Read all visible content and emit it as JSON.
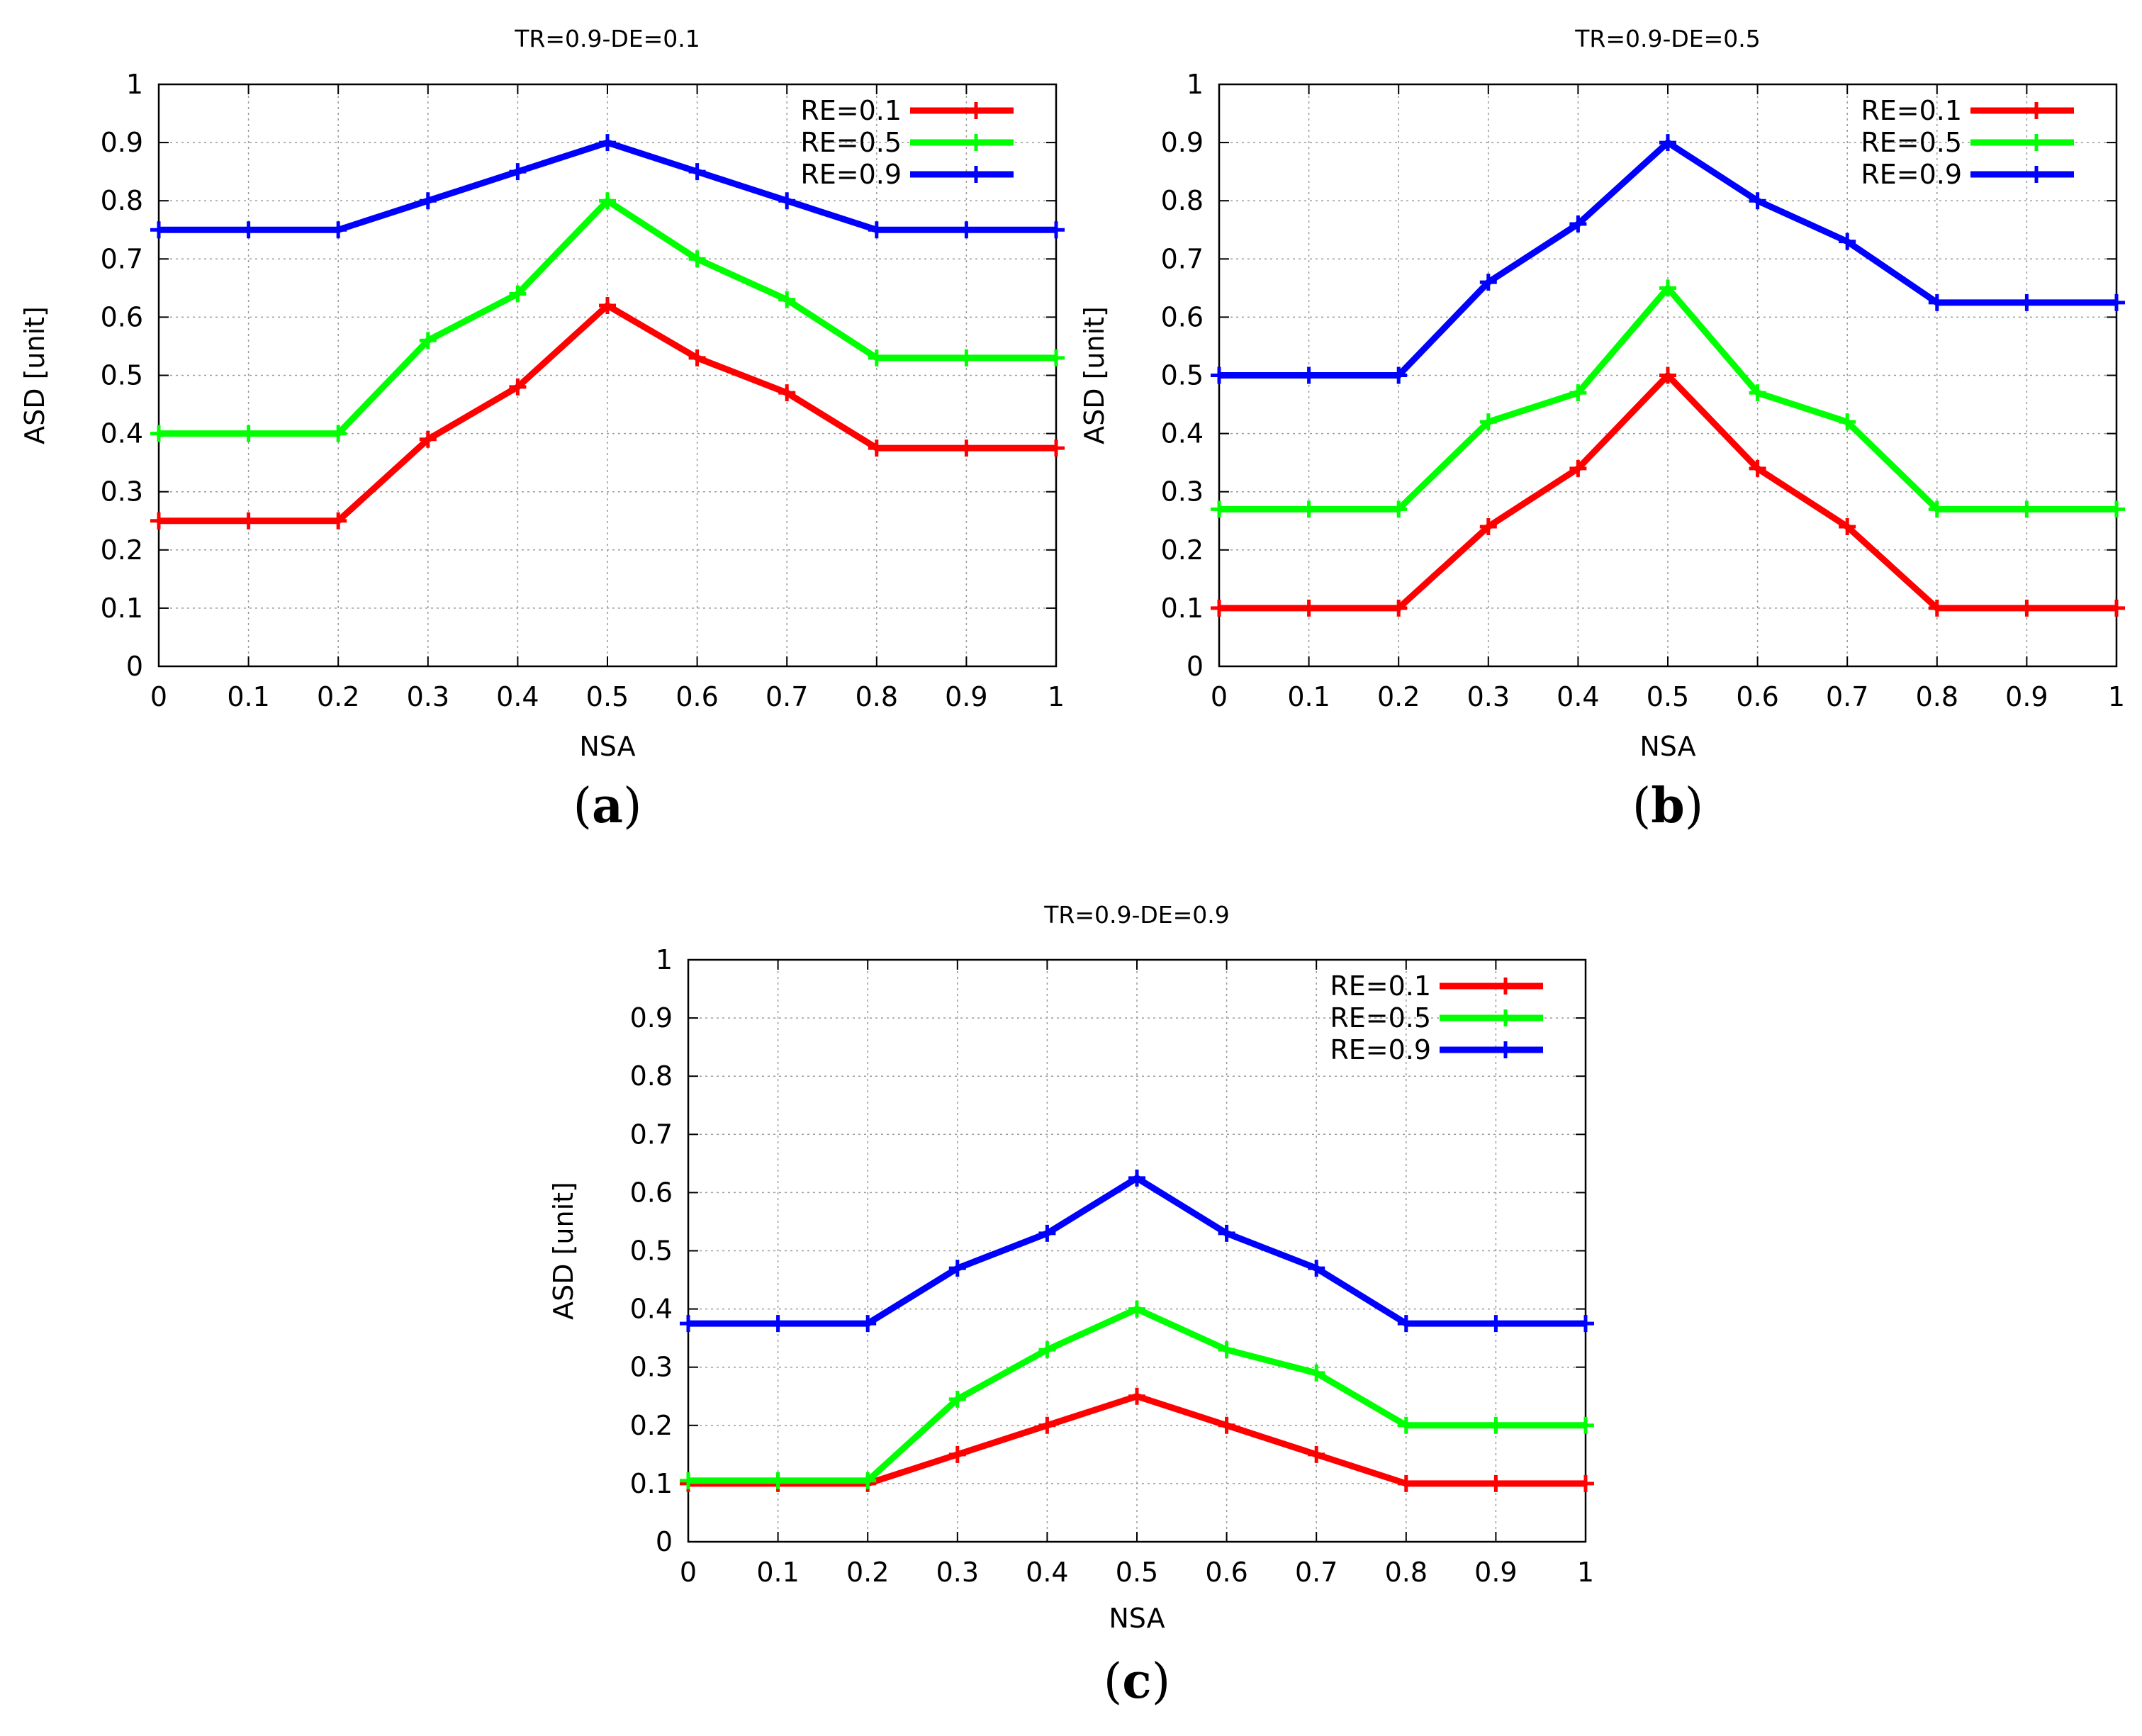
{
  "chart_data": [
    {
      "type": "line",
      "title": "TR=0.9-DE=0.1",
      "caption_open": "(",
      "caption_letter": "a",
      "caption_close": ")",
      "xlabel": "NSA",
      "ylabel": "ASD [unit]",
      "x": [
        0,
        0.1,
        0.2,
        0.3,
        0.4,
        0.5,
        0.6,
        0.7,
        0.8,
        0.9,
        1
      ],
      "xlim": [
        0,
        1
      ],
      "ylim": [
        0,
        1
      ],
      "xticks": [
        "0",
        "0.1",
        "0.2",
        "0.3",
        "0.4",
        "0.5",
        "0.6",
        "0.7",
        "0.8",
        "0.9",
        "1"
      ],
      "yticks": [
        "0",
        "0.1",
        "0.2",
        "0.3",
        "0.4",
        "0.5",
        "0.6",
        "0.7",
        "0.8",
        "0.9",
        "1"
      ],
      "grid": true,
      "legend_position": "top-right",
      "series": [
        {
          "name": "RE=0.1",
          "color": "#ff0000",
          "values": [
            0.25,
            0.25,
            0.25,
            0.39,
            0.48,
            0.62,
            0.53,
            0.47,
            0.375,
            0.375,
            0.375
          ]
        },
        {
          "name": "RE=0.5",
          "color": "#00ff00",
          "values": [
            0.4,
            0.4,
            0.4,
            0.56,
            0.64,
            0.8,
            0.7,
            0.63,
            0.53,
            0.53,
            0.53
          ]
        },
        {
          "name": "RE=0.9",
          "color": "#0000ff",
          "values": [
            0.75,
            0.75,
            0.75,
            0.8,
            0.85,
            0.9,
            0.85,
            0.8,
            0.75,
            0.75,
            0.75
          ]
        }
      ]
    },
    {
      "type": "line",
      "title": "TR=0.9-DE=0.5",
      "caption_open": "(",
      "caption_letter": "b",
      "caption_close": ")",
      "xlabel": "NSA",
      "ylabel": "ASD [unit]",
      "x": [
        0,
        0.1,
        0.2,
        0.3,
        0.4,
        0.5,
        0.6,
        0.7,
        0.8,
        0.9,
        1
      ],
      "xlim": [
        0,
        1
      ],
      "ylim": [
        0,
        1
      ],
      "xticks": [
        "0",
        "0.1",
        "0.2",
        "0.3",
        "0.4",
        "0.5",
        "0.6",
        "0.7",
        "0.8",
        "0.9",
        "1"
      ],
      "yticks": [
        "0",
        "0.1",
        "0.2",
        "0.3",
        "0.4",
        "0.5",
        "0.6",
        "0.7",
        "0.8",
        "0.9",
        "1"
      ],
      "grid": true,
      "legend_position": "top-right",
      "series": [
        {
          "name": "RE=0.1",
          "color": "#ff0000",
          "values": [
            0.1,
            0.1,
            0.1,
            0.24,
            0.34,
            0.5,
            0.34,
            0.24,
            0.1,
            0.1,
            0.1
          ]
        },
        {
          "name": "RE=0.5",
          "color": "#00ff00",
          "values": [
            0.27,
            0.27,
            0.27,
            0.42,
            0.47,
            0.65,
            0.47,
            0.42,
            0.27,
            0.27,
            0.27
          ]
        },
        {
          "name": "RE=0.9",
          "color": "#0000ff",
          "values": [
            0.5,
            0.5,
            0.5,
            0.66,
            0.76,
            0.9,
            0.8,
            0.73,
            0.625,
            0.625,
            0.625
          ]
        }
      ]
    },
    {
      "type": "line",
      "title": "TR=0.9-DE=0.9",
      "caption_open": "(",
      "caption_letter": "c",
      "caption_close": ")",
      "xlabel": "NSA",
      "ylabel": "ASD [unit]",
      "x": [
        0,
        0.1,
        0.2,
        0.3,
        0.4,
        0.5,
        0.6,
        0.7,
        0.8,
        0.9,
        1
      ],
      "xlim": [
        0,
        1
      ],
      "ylim": [
        0,
        1
      ],
      "xticks": [
        "0",
        "0.1",
        "0.2",
        "0.3",
        "0.4",
        "0.5",
        "0.6",
        "0.7",
        "0.8",
        "0.9",
        "1"
      ],
      "yticks": [
        "0",
        "0.1",
        "0.2",
        "0.3",
        "0.4",
        "0.5",
        "0.6",
        "0.7",
        "0.8",
        "0.9",
        "1"
      ],
      "grid": true,
      "legend_position": "top-right",
      "series": [
        {
          "name": "RE=0.1",
          "color": "#ff0000",
          "values": [
            0.1,
            0.1,
            0.1,
            0.15,
            0.2,
            0.25,
            0.2,
            0.15,
            0.1,
            0.1,
            0.1
          ]
        },
        {
          "name": "RE=0.5",
          "color": "#00ff00",
          "values": [
            0.105,
            0.105,
            0.105,
            0.245,
            0.33,
            0.4,
            0.33,
            0.29,
            0.2,
            0.2,
            0.2
          ]
        },
        {
          "name": "RE=0.9",
          "color": "#0000ff",
          "values": [
            0.375,
            0.375,
            0.375,
            0.47,
            0.53,
            0.625,
            0.53,
            0.47,
            0.375,
            0.375,
            0.375
          ]
        }
      ]
    }
  ]
}
